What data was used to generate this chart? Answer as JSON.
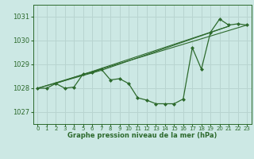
{
  "bg_color": "#cce8e4",
  "grid_color": "#b8d4d0",
  "line_color": "#2d6a2d",
  "marker_color": "#2d6a2d",
  "xlabel": "Graphe pression niveau de la mer (hPa)",
  "xlim": [
    -0.5,
    23.5
  ],
  "ylim": [
    1026.5,
    1031.5
  ],
  "yticks": [
    1027,
    1028,
    1029,
    1030,
    1031
  ],
  "xticks": [
    0,
    1,
    2,
    3,
    4,
    5,
    6,
    7,
    8,
    9,
    10,
    11,
    12,
    13,
    14,
    15,
    16,
    17,
    18,
    19,
    20,
    21,
    22,
    23
  ],
  "main_line": {
    "x": [
      0,
      1,
      2,
      3,
      4,
      5,
      6,
      7,
      8,
      9,
      10,
      11,
      12,
      13,
      14,
      15,
      16,
      17,
      18,
      19,
      20,
      21,
      22,
      23
    ],
    "y": [
      1028.0,
      1028.0,
      1028.2,
      1028.0,
      1028.05,
      1028.6,
      1028.65,
      1028.8,
      1028.35,
      1028.4,
      1028.2,
      1027.6,
      1027.5,
      1027.35,
      1027.35,
      1027.35,
      1027.55,
      1029.7,
      1028.8,
      1030.35,
      1030.9,
      1030.65,
      1030.7,
      1030.65
    ]
  },
  "trend_line1": {
    "x": [
      0,
      23
    ],
    "y": [
      1028.0,
      1030.65
    ]
  },
  "trend_line2": {
    "x": [
      0,
      23
    ],
    "y": [
      1028.0,
      1030.65
    ]
  },
  "trend_line3": {
    "x": [
      2,
      21
    ],
    "y": [
      1028.2,
      1030.6
    ]
  },
  "trend_line4": {
    "x": [
      0,
      7,
      21
    ],
    "y": [
      1028.0,
      1028.75,
      1030.6
    ]
  }
}
